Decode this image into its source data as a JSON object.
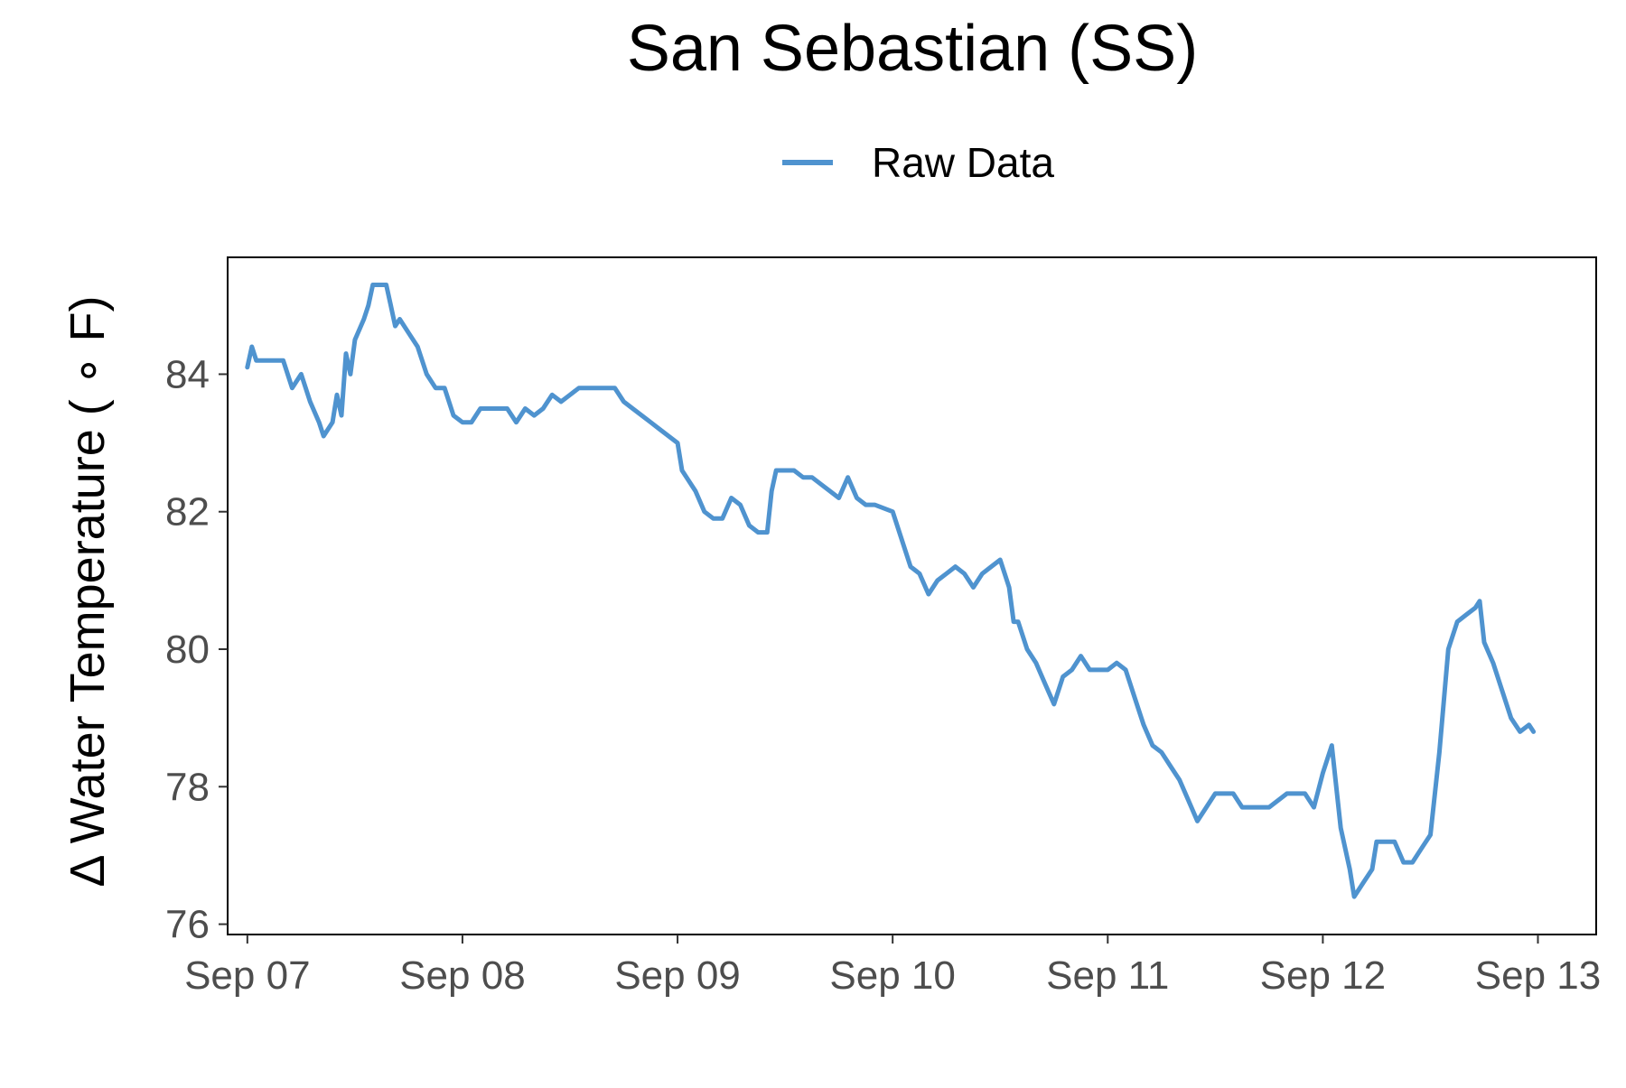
{
  "chart_data": {
    "type": "line",
    "title": "San Sebastian (SS)",
    "xlabel": "",
    "ylabel": "Δ Water Temperature ( ∘ F)",
    "x_ticks": [
      "Sep 07",
      "Sep 08",
      "Sep 09",
      "Sep 10",
      "Sep 11",
      "Sep 12",
      "Sep 13"
    ],
    "y_ticks": [
      76,
      78,
      80,
      82,
      84
    ],
    "xlim": [
      "Sep 06 21:48",
      "Sep 13 06:30"
    ],
    "ylim": [
      75.85,
      85.7
    ],
    "grid": false,
    "legend_position": "top",
    "series": [
      {
        "name": "Raw Data",
        "color": "#4f93cf",
        "points": [
          [
            "Sep 07 00:00",
            84.1
          ],
          [
            "Sep 07 00:30",
            84.4
          ],
          [
            "Sep 07 01:00",
            84.2
          ],
          [
            "Sep 07 04:00",
            84.2
          ],
          [
            "Sep 07 05:00",
            83.8
          ],
          [
            "Sep 07 06:00",
            84.0
          ],
          [
            "Sep 07 07:00",
            83.6
          ],
          [
            "Sep 07 08:00",
            83.3
          ],
          [
            "Sep 07 08:30",
            83.1
          ],
          [
            "Sep 07 09:30",
            83.3
          ],
          [
            "Sep 07 10:00",
            83.7
          ],
          [
            "Sep 07 10:30",
            83.4
          ],
          [
            "Sep 07 11:00",
            84.3
          ],
          [
            "Sep 07 11:30",
            84.0
          ],
          [
            "Sep 07 12:00",
            84.5
          ],
          [
            "Sep 07 13:00",
            84.8
          ],
          [
            "Sep 07 13:30",
            85.0
          ],
          [
            "Sep 07 14:00",
            85.3
          ],
          [
            "Sep 07 15:30",
            85.3
          ],
          [
            "Sep 07 16:00",
            85.0
          ],
          [
            "Sep 07 16:30",
            84.7
          ],
          [
            "Sep 07 17:00",
            84.8
          ],
          [
            "Sep 07 18:00",
            84.6
          ],
          [
            "Sep 07 19:00",
            84.4
          ],
          [
            "Sep 07 20:00",
            84.0
          ],
          [
            "Sep 07 21:00",
            83.8
          ],
          [
            "Sep 07 22:00",
            83.8
          ],
          [
            "Sep 07 23:00",
            83.4
          ],
          [
            "Sep 08 00:00",
            83.3
          ],
          [
            "Sep 08 01:00",
            83.3
          ],
          [
            "Sep 08 02:00",
            83.5
          ],
          [
            "Sep 08 05:00",
            83.5
          ],
          [
            "Sep 08 06:00",
            83.3
          ],
          [
            "Sep 08 07:00",
            83.5
          ],
          [
            "Sep 08 08:00",
            83.4
          ],
          [
            "Sep 08 09:00",
            83.5
          ],
          [
            "Sep 08 10:00",
            83.7
          ],
          [
            "Sep 08 11:00",
            83.6
          ],
          [
            "Sep 08 12:00",
            83.7
          ],
          [
            "Sep 08 13:00",
            83.8
          ],
          [
            "Sep 08 17:00",
            83.8
          ],
          [
            "Sep 08 18:00",
            83.6
          ],
          [
            "Sep 08 19:00",
            83.5
          ],
          [
            "Sep 08 20:00",
            83.4
          ],
          [
            "Sep 08 21:00",
            83.3
          ],
          [
            "Sep 08 22:00",
            83.2
          ],
          [
            "Sep 09 00:00",
            83.0
          ],
          [
            "Sep 09 00:30",
            82.6
          ],
          [
            "Sep 09 01:00",
            82.5
          ],
          [
            "Sep 09 02:00",
            82.3
          ],
          [
            "Sep 09 03:00",
            82.0
          ],
          [
            "Sep 09 04:00",
            81.9
          ],
          [
            "Sep 09 05:00",
            81.9
          ],
          [
            "Sep 09 06:00",
            82.2
          ],
          [
            "Sep 09 07:00",
            82.1
          ],
          [
            "Sep 09 08:00",
            81.8
          ],
          [
            "Sep 09 09:00",
            81.7
          ],
          [
            "Sep 09 10:00",
            81.7
          ],
          [
            "Sep 09 10:30",
            82.3
          ],
          [
            "Sep 09 11:00",
            82.6
          ],
          [
            "Sep 09 13:00",
            82.6
          ],
          [
            "Sep 09 14:00",
            82.5
          ],
          [
            "Sep 09 15:00",
            82.5
          ],
          [
            "Sep 09 16:00",
            82.4
          ],
          [
            "Sep 09 17:00",
            82.3
          ],
          [
            "Sep 09 18:00",
            82.2
          ],
          [
            "Sep 09 19:00",
            82.5
          ],
          [
            "Sep 09 20:00",
            82.2
          ],
          [
            "Sep 09 21:00",
            82.1
          ],
          [
            "Sep 09 22:00",
            82.1
          ],
          [
            "Sep 10 00:00",
            82.0
          ],
          [
            "Sep 10 01:00",
            81.6
          ],
          [
            "Sep 10 02:00",
            81.2
          ],
          [
            "Sep 10 03:00",
            81.1
          ],
          [
            "Sep 10 04:00",
            80.8
          ],
          [
            "Sep 10 05:00",
            81.0
          ],
          [
            "Sep 10 06:00",
            81.1
          ],
          [
            "Sep 10 07:00",
            81.2
          ],
          [
            "Sep 10 08:00",
            81.1
          ],
          [
            "Sep 10 09:00",
            80.9
          ],
          [
            "Sep 10 10:00",
            81.1
          ],
          [
            "Sep 10 11:00",
            81.2
          ],
          [
            "Sep 10 12:00",
            81.3
          ],
          [
            "Sep 10 13:00",
            80.9
          ],
          [
            "Sep 10 13:30",
            80.4
          ],
          [
            "Sep 10 14:00",
            80.4
          ],
          [
            "Sep 10 15:00",
            80.0
          ],
          [
            "Sep 10 16:00",
            79.8
          ],
          [
            "Sep 10 17:00",
            79.5
          ],
          [
            "Sep 10 18:00",
            79.2
          ],
          [
            "Sep 10 19:00",
            79.6
          ],
          [
            "Sep 10 20:00",
            79.7
          ],
          [
            "Sep 10 21:00",
            79.9
          ],
          [
            "Sep 10 22:00",
            79.7
          ],
          [
            "Sep 11 00:00",
            79.7
          ],
          [
            "Sep 11 01:00",
            79.8
          ],
          [
            "Sep 11 02:00",
            79.7
          ],
          [
            "Sep 11 03:00",
            79.3
          ],
          [
            "Sep 11 04:00",
            78.9
          ],
          [
            "Sep 11 05:00",
            78.6
          ],
          [
            "Sep 11 06:00",
            78.5
          ],
          [
            "Sep 11 07:00",
            78.3
          ],
          [
            "Sep 11 08:00",
            78.1
          ],
          [
            "Sep 11 09:00",
            77.8
          ],
          [
            "Sep 11 10:00",
            77.5
          ],
          [
            "Sep 11 11:00",
            77.7
          ],
          [
            "Sep 11 12:00",
            77.9
          ],
          [
            "Sep 11 13:00",
            77.9
          ],
          [
            "Sep 11 14:00",
            77.9
          ],
          [
            "Sep 11 15:00",
            77.7
          ],
          [
            "Sep 11 17:00",
            77.7
          ],
          [
            "Sep 11 18:00",
            77.7
          ],
          [
            "Sep 11 19:00",
            77.8
          ],
          [
            "Sep 11 20:00",
            77.9
          ],
          [
            "Sep 11 22:00",
            77.9
          ],
          [
            "Sep 11 23:00",
            77.7
          ],
          [
            "Sep 12 00:00",
            78.2
          ],
          [
            "Sep 12 01:00",
            78.6
          ],
          [
            "Sep 12 02:00",
            77.4
          ],
          [
            "Sep 12 03:00",
            76.8
          ],
          [
            "Sep 12 03:30",
            76.4
          ],
          [
            "Sep 12 04:30",
            76.6
          ],
          [
            "Sep 12 05:30",
            76.8
          ],
          [
            "Sep 12 06:00",
            77.2
          ],
          [
            "Sep 12 08:00",
            77.2
          ],
          [
            "Sep 12 09:00",
            76.9
          ],
          [
            "Sep 12 10:00",
            76.9
          ],
          [
            "Sep 12 11:00",
            77.1
          ],
          [
            "Sep 12 12:00",
            77.3
          ],
          [
            "Sep 12 13:00",
            78.5
          ],
          [
            "Sep 12 14:00",
            80.0
          ],
          [
            "Sep 12 15:00",
            80.4
          ],
          [
            "Sep 12 16:00",
            80.5
          ],
          [
            "Sep 12 17:00",
            80.6
          ],
          [
            "Sep 12 17:30",
            80.7
          ],
          [
            "Sep 12 18:00",
            80.1
          ],
          [
            "Sep 12 19:00",
            79.8
          ],
          [
            "Sep 12 20:00",
            79.4
          ],
          [
            "Sep 12 21:00",
            79.0
          ],
          [
            "Sep 12 22:00",
            78.8
          ],
          [
            "Sep 12 23:00",
            78.9
          ],
          [
            "Sep 12 23:30",
            78.8
          ]
        ]
      }
    ]
  }
}
